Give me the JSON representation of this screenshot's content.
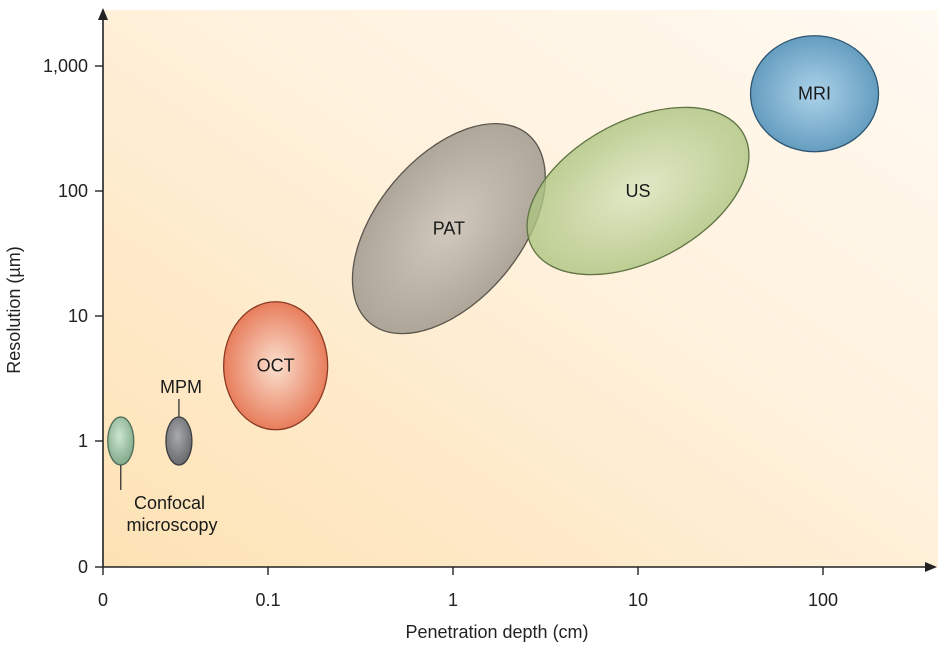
{
  "chart_data": {
    "type": "scatter",
    "title": "",
    "xlabel": "Penetration depth (cm)",
    "ylabel": "Resolution (µm)",
    "x_scale": "log",
    "y_scale": "log",
    "x_ticks": [
      {
        "value": 0,
        "label": "0"
      },
      {
        "value": 0.1,
        "label": "0.1"
      },
      {
        "value": 1,
        "label": "1"
      },
      {
        "value": 10,
        "label": "10"
      },
      {
        "value": 100,
        "label": "100"
      }
    ],
    "y_ticks": [
      {
        "value": 0,
        "label": "0"
      },
      {
        "value": 1,
        "label": "1"
      },
      {
        "value": 10,
        "label": "10"
      },
      {
        "value": 100,
        "label": "100"
      },
      {
        "value": 1000,
        "label": "1,000"
      }
    ],
    "grid": false,
    "regions": [
      {
        "name": "confocal",
        "label": "",
        "depth_cm": 0.016,
        "resolution_um": 1.0,
        "fill": "#8dbf9c",
        "stroke": "#4d6b57",
        "opacity": 0.95
      },
      {
        "name": "mpm",
        "label": "",
        "depth_cm": 0.033,
        "resolution_um": 1.0,
        "fill": "#6e7177",
        "stroke": "#3b3d40",
        "opacity": 0.95
      },
      {
        "name": "oct",
        "label": "OCT",
        "depth_cm": 0.11,
        "resolution_um": 4.0,
        "fill": "#e5714f",
        "stroke": "#8a3a22",
        "opacity": 0.95
      },
      {
        "name": "pat",
        "label": "PAT",
        "depth_cm": 0.95,
        "resolution_um": 50,
        "fill": "#9c968c",
        "stroke": "#5a554d",
        "opacity": 0.82
      },
      {
        "name": "us",
        "label": "US",
        "depth_cm": 10,
        "resolution_um": 100,
        "fill": "#a9c27a",
        "stroke": "#5f7344",
        "opacity": 0.78
      },
      {
        "name": "mri",
        "label": "MRI",
        "depth_cm": 90,
        "resolution_um": 600,
        "fill": "#5e9cc1",
        "stroke": "#2e5672",
        "opacity": 0.95
      }
    ],
    "callouts": [
      {
        "name": "mpm-callout",
        "lines": [
          "MPM"
        ]
      },
      {
        "name": "confocal-callout",
        "lines": [
          "Confocal",
          "microscopy"
        ]
      }
    ],
    "colors": {
      "background_near_origin": "#fde2b4",
      "background_far": "#fffaf2",
      "axis": "#222222"
    }
  }
}
